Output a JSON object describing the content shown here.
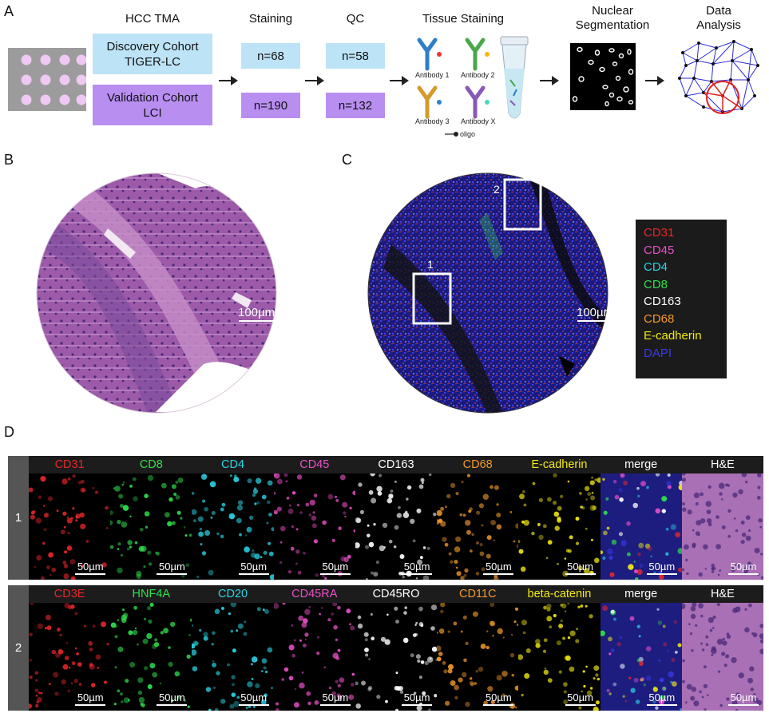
{
  "panels": {
    "a": "A",
    "b": "B",
    "c": "C",
    "d": "D"
  },
  "workflow": {
    "tma_title": "HCC TMA",
    "discovery": "Discovery Cohort\nTIGER-LC",
    "validation": "Validation Cohort\nLCI",
    "staining_title": "Staining",
    "staining_disc": "n=68",
    "staining_val": "n=190",
    "qc_title": "QC",
    "qc_disc": "n=58",
    "qc_val": "n=132",
    "tissue_title": "Tissue Staining",
    "antibodies": [
      "Antibody 1",
      "Antibody 2",
      "Antibody 3",
      "Antibody X"
    ],
    "oligo": "oligo",
    "seg_title": "Nuclear\nSegmentation",
    "analysis_title": "Data\nAnalysis"
  },
  "panel_b": {
    "scale": "100µm"
  },
  "panel_c": {
    "scale": "100µm",
    "roi_labels": [
      "1",
      "2"
    ],
    "legend": [
      {
        "label": "CD31",
        "color": "#e8262a"
      },
      {
        "label": "CD45",
        "color": "#e94fc8"
      },
      {
        "label": "CD4",
        "color": "#2ad3e3"
      },
      {
        "label": "CD8",
        "color": "#2fe04d"
      },
      {
        "label": "CD163",
        "color": "#ffffff"
      },
      {
        "label": "CD68",
        "color": "#f39a2b"
      },
      {
        "label": "E-cadherin",
        "color": "#f2ea12"
      },
      {
        "label": "DAPI",
        "color": "#3a3af0"
      }
    ]
  },
  "panel_d": {
    "scale": "50µm",
    "row1": {
      "label": "1",
      "tiles": [
        {
          "label": "CD31",
          "color": "#e8262a"
        },
        {
          "label": "CD8",
          "color": "#2fe04d"
        },
        {
          "label": "CD4",
          "color": "#2ad3e3"
        },
        {
          "label": "CD45",
          "color": "#e94fc8"
        },
        {
          "label": "CD163",
          "color": "#ffffff"
        },
        {
          "label": "CD68",
          "color": "#f39a2b"
        },
        {
          "label": "E-cadherin",
          "color": "#f2ea12"
        },
        {
          "label": "merge",
          "color": "#ffffff"
        },
        {
          "label": "H&E",
          "color": "#ffffff"
        }
      ]
    },
    "row2": {
      "label": "2",
      "tiles": [
        {
          "label": "CD3E",
          "color": "#e8262a"
        },
        {
          "label": "HNF4A",
          "color": "#2fe04d"
        },
        {
          "label": "CD20",
          "color": "#2ad3e3"
        },
        {
          "label": "CD45RA",
          "color": "#e94fc8"
        },
        {
          "label": "CD45RO",
          "color": "#ffffff"
        },
        {
          "label": "CD11C",
          "color": "#f39a2b"
        },
        {
          "label": "beta-catenin",
          "color": "#f2ea12"
        },
        {
          "label": "merge",
          "color": "#ffffff"
        },
        {
          "label": "H&E",
          "color": "#ffffff"
        }
      ]
    }
  }
}
